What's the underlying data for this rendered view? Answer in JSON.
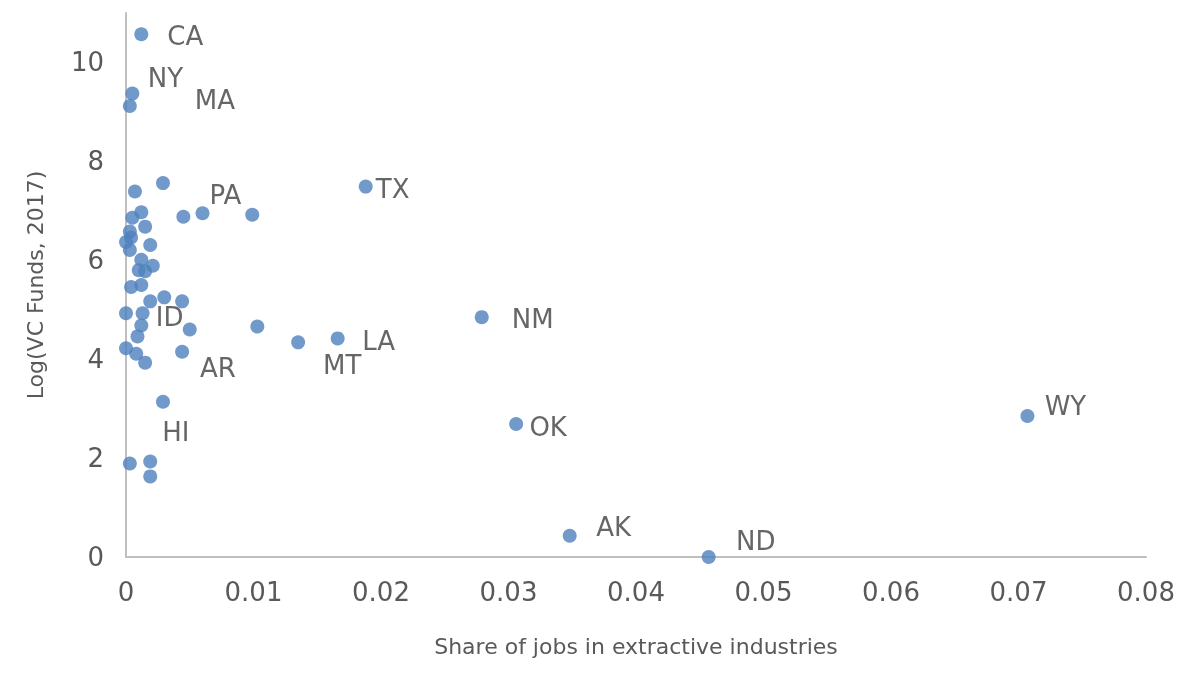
{
  "chart_data": {
    "type": "scatter",
    "xlabel": "Share of jobs in extractive industries",
    "ylabel": "Log(VC Funds, 2017)",
    "x": [
      0.0012,
      0.0005,
      0.0003,
      0.0029,
      0.0007,
      0.0188,
      0.0045,
      0.006,
      0.0099,
      0.0012,
      0.0005,
      0.0015,
      0.0003,
      0.0004,
      0,
      0.0019,
      0.0003,
      0.0012,
      0.0021,
      0.0015,
      0.001,
      0.0012,
      0.0004,
      0.003,
      0.0019,
      0.0044,
      0,
      0.0013,
      0.005,
      0.0103,
      0.0012,
      0.0009,
      0,
      0.0008,
      0.0015,
      0.0044,
      0.0166,
      0.0135,
      0.0279,
      0.0029,
      0.0003,
      0.0019,
      0.0019,
      0.0306,
      0.0707,
      0.0348,
      0.0457
    ],
    "values": [
      10.57,
      9.37,
      9.12,
      7.56,
      7.39,
      7.49,
      6.88,
      6.95,
      6.92,
      6.97,
      6.86,
      6.68,
      6.58,
      6.46,
      6.37,
      6.31,
      6.21,
      6.01,
      5.89,
      5.78,
      5.8,
      5.5,
      5.46,
      5.25,
      5.17,
      5.17,
      4.93,
      4.93,
      4.6,
      4.66,
      4.68,
      4.46,
      4.22,
      4.11,
      3.93,
      4.15,
      4.42,
      4.34,
      4.85,
      3.14,
      1.89,
      1.93,
      1.63,
      2.69,
      2.85,
      0.43,
      0
    ],
    "color": "#4e81bd",
    "marker": "circle",
    "grid": false,
    "xlim": [
      0,
      0.08
    ],
    "xticks": [
      0,
      0.01,
      0.02,
      0.03,
      0.04,
      0.05,
      0.06,
      0.07,
      0.08
    ],
    "ylim": [
      0,
      11
    ],
    "yticks": [
      0,
      2,
      4,
      6,
      8,
      10
    ],
    "annotations": [
      {
        "text": "CA",
        "x": 0.0012,
        "y": 10.57
      },
      {
        "text": "NY",
        "x": 0.0005,
        "y": 9.37
      },
      {
        "text": "MA",
        "x": 0.0003,
        "y": 9.12
      },
      {
        "text": "TX",
        "x": 0.0188,
        "y": 7.49
      },
      {
        "text": "PA",
        "x": 0.0045,
        "y": 6.88
      },
      {
        "text": "ID",
        "x": 0.0013,
        "y": 4.93
      },
      {
        "text": "LA",
        "x": 0.0166,
        "y": 4.42
      },
      {
        "text": "MT",
        "x": 0.0135,
        "y": 4.34
      },
      {
        "text": "NM",
        "x": 0.0279,
        "y": 4.85
      },
      {
        "text": "AR",
        "x": 0.0029,
        "y": 3.14
      },
      {
        "text": "HI",
        "x": 0.0003,
        "y": 1.89
      },
      {
        "text": "OK",
        "x": 0.0306,
        "y": 2.69
      },
      {
        "text": "WY",
        "x": 0.0707,
        "y": 2.85
      },
      {
        "text": "AK",
        "x": 0.0348,
        "y": 0.43
      },
      {
        "text": "ND",
        "x": 0.0457,
        "y": 0
      }
    ]
  }
}
